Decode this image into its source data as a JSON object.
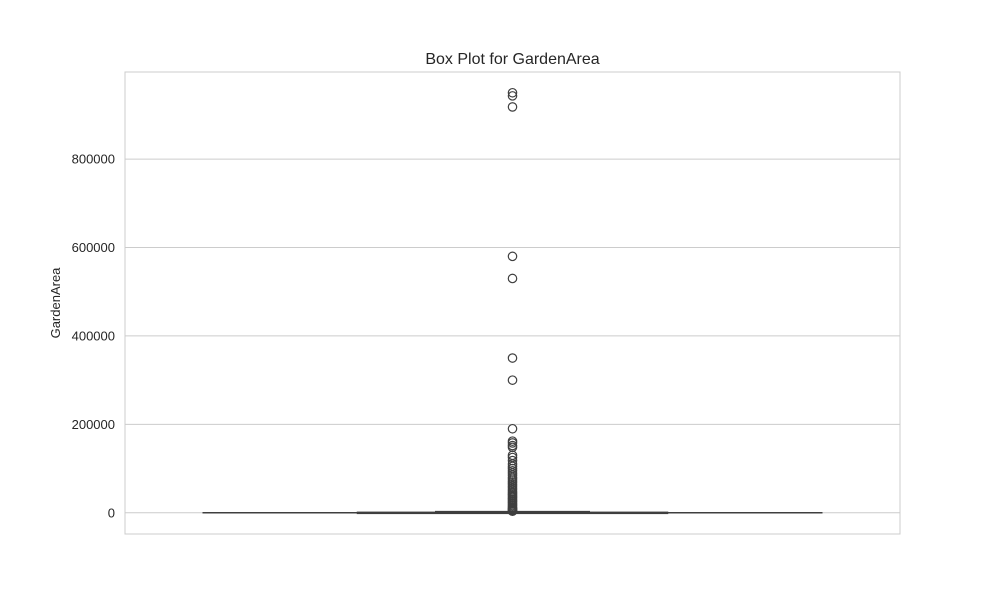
{
  "chart_data": {
    "type": "box",
    "title": "Box Plot for GardenArea",
    "xlabel": "",
    "ylabel": "GardenArea",
    "ylim": [
      -48000,
      997000
    ],
    "yticks": [
      0,
      200000,
      400000,
      600000,
      800000
    ],
    "ytick_labels": [
      "0",
      "200000",
      "400000",
      "600000",
      "800000"
    ],
    "grid": true,
    "colors": {
      "box": "#3f3f3f",
      "grid": "#cccccc",
      "text": "#262626"
    },
    "box": {
      "whisker_low": 0,
      "q1": 0,
      "median": 0,
      "q3": 1000,
      "whisker_high": 2500
    },
    "outliers": [
      950000,
      943000,
      918000,
      580000,
      530000,
      350000,
      300000,
      190000,
      162000,
      158000,
      152000,
      148000,
      130000,
      125000,
      118000,
      110000,
      105000,
      100000,
      95000,
      90000,
      85000,
      80000,
      76000,
      72000,
      68000,
      64000,
      60000,
      56000,
      52000,
      48000,
      45000,
      42000,
      39000,
      36000,
      33000,
      30000,
      27000,
      24000,
      21000,
      18000,
      15000,
      12000,
      10000,
      8000,
      6000,
      4500,
      3500
    ]
  }
}
